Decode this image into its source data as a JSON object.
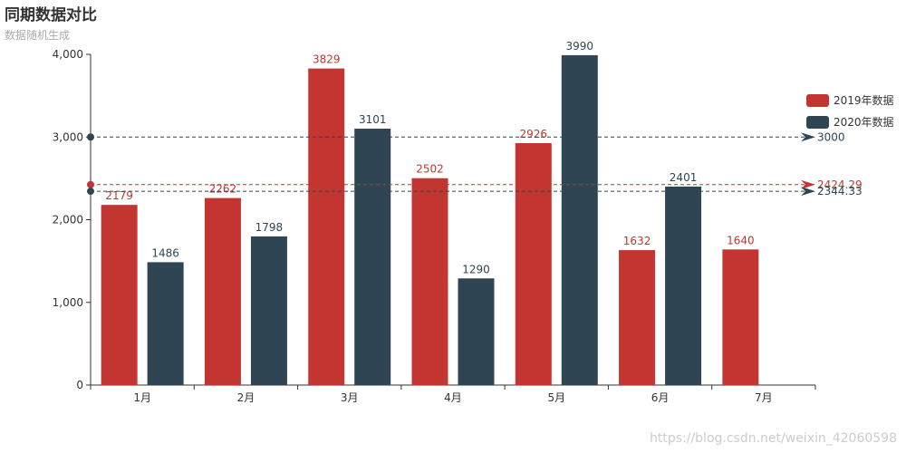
{
  "chart_data": {
    "type": "bar",
    "title": "同期数据对比",
    "subtitle": "数据随机生成",
    "categories": [
      "1月",
      "2月",
      "3月",
      "4月",
      "5月",
      "6月",
      "7月"
    ],
    "series": [
      {
        "name": "2019年数据",
        "color": "#c23531",
        "values": [
          2179,
          2262,
          3829,
          2502,
          2926,
          1632,
          1640
        ]
      },
      {
        "name": "2020年数据",
        "color": "#2f4554",
        "values": [
          1486,
          1798,
          3101,
          1290,
          3990,
          2401,
          null
        ]
      }
    ],
    "ylim": [
      0,
      4000
    ],
    "yticks": [
      0,
      1000,
      2000,
      3000,
      4000
    ],
    "ytick_labels": [
      "0",
      "1,000",
      "2,000",
      "3,000",
      "4,000"
    ],
    "legend_position": "right",
    "mark_lines": [
      {
        "series": "2020年数据",
        "value": 3000,
        "label": "3000",
        "color": "#2f4554"
      },
      {
        "series": "2019年数据",
        "value": 2424.29,
        "label": "2424.29",
        "color": "#c23531"
      },
      {
        "series": "2020年数据",
        "value": 2344.33,
        "label": "2344.33",
        "color": "#2f4554"
      }
    ]
  },
  "watermark": "https://blog.csdn.net/weixin_42060598"
}
